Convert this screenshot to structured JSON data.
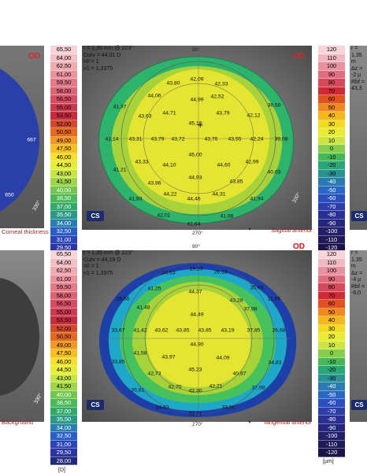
{
  "left_panel": {
    "top_od": "OD",
    "top_caption": "Corneal thickness",
    "bottom_caption": "Background",
    "top_values": [
      "667",
      "650"
    ],
    "top_angle": "330°",
    "bottom_angle": "330°",
    "scale_values": [
      "65,50",
      "64,00",
      "62,50",
      "61,00",
      "59,50",
      "58,00",
      "56,50",
      "55,00",
      "53,50",
      "52,00",
      "50,50",
      "49,00",
      "47,50",
      "46,00",
      "44,50",
      "43,00",
      "41,50",
      "40,00",
      "38,50",
      "37,00",
      "35,50",
      "34,00",
      "32,50",
      "31,00",
      "29,50",
      "28,00"
    ],
    "scale_unit": "[D]"
  },
  "top_panel": {
    "params": [
      "r = 1,35 mm @ 223°",
      "Curv = 44,01 D",
      "n0 = 1",
      "n1 = 1,3375"
    ],
    "od": "OD",
    "deg_top": "90°",
    "deg_bottom": "270°",
    "deg_right": "330°",
    "caption": "Sagittal anterior",
    "logo": "CS",
    "values": [
      "42,09",
      "43,80",
      "42,33",
      "44,06",
      "42,52",
      "44,99",
      "41,37",
      "38,50",
      "43,63",
      "44,71",
      "43,79",
      "42,12",
      "45,10",
      "41,14",
      "43,31",
      "43,79",
      "43,72",
      "43,76",
      "43,55",
      "42,24",
      "39,08",
      "45,00",
      "43,33",
      "44,10",
      "44,60",
      "42,99",
      "41,21",
      "40,63",
      "43,86",
      "44,93",
      "43,85",
      "44,22",
      "44,31",
      "41,93",
      "44,46",
      "41,94",
      "42,01",
      "41,88",
      "41,64"
    ]
  },
  "bottom_panel": {
    "params": [
      "r = 1,35 mm @ 223°",
      "Curv = 44,19 D",
      "n0 = 1",
      "n1 = 1,3375"
    ],
    "od": "OD",
    "deg_top": "90°",
    "deg_bottom": "270°",
    "caption": "Tangential anterior",
    "logo": "CS",
    "values": [
      "34,53",
      "19,20",
      "26,13",
      "44,37",
      "41,25",
      "43,28",
      "35,69",
      "26,65",
      "11,66",
      "41,48",
      "37,98",
      "44,49",
      "33,67",
      "41,42",
      "43,62",
      "43,85",
      "43,85",
      "43,19",
      "37,85",
      "26,68",
      "44,90",
      "41,58",
      "43,97",
      "44,09",
      "33,85",
      "34,83",
      "45,23",
      "42,73",
      "40,87",
      "35,61",
      "42,70",
      "42,21",
      "37,98",
      "42,30",
      "34,63",
      "33,90",
      "32,71"
    ]
  },
  "right_scale": {
    "top_params": [
      "r = 1,35 m",
      "Δz = -2 µ",
      "Rbf = 43,3"
    ],
    "bottom_params": [
      "r = 1,35 m",
      "Δz = -4 µ",
      "Rbf = -6,0"
    ],
    "top_od": "OD",
    "bottom_od": "OD",
    "scale_values": [
      "120",
      "110",
      "100",
      "90",
      "80",
      "70",
      "60",
      "50",
      "40",
      "30",
      "20",
      "10",
      "0",
      "-10",
      "-20",
      "-30",
      "-40",
      "-50",
      "-60",
      "-70",
      "-80",
      "-90",
      "-100",
      "-110",
      "-120"
    ],
    "unit": "[µm]",
    "logo": "CS"
  }
}
